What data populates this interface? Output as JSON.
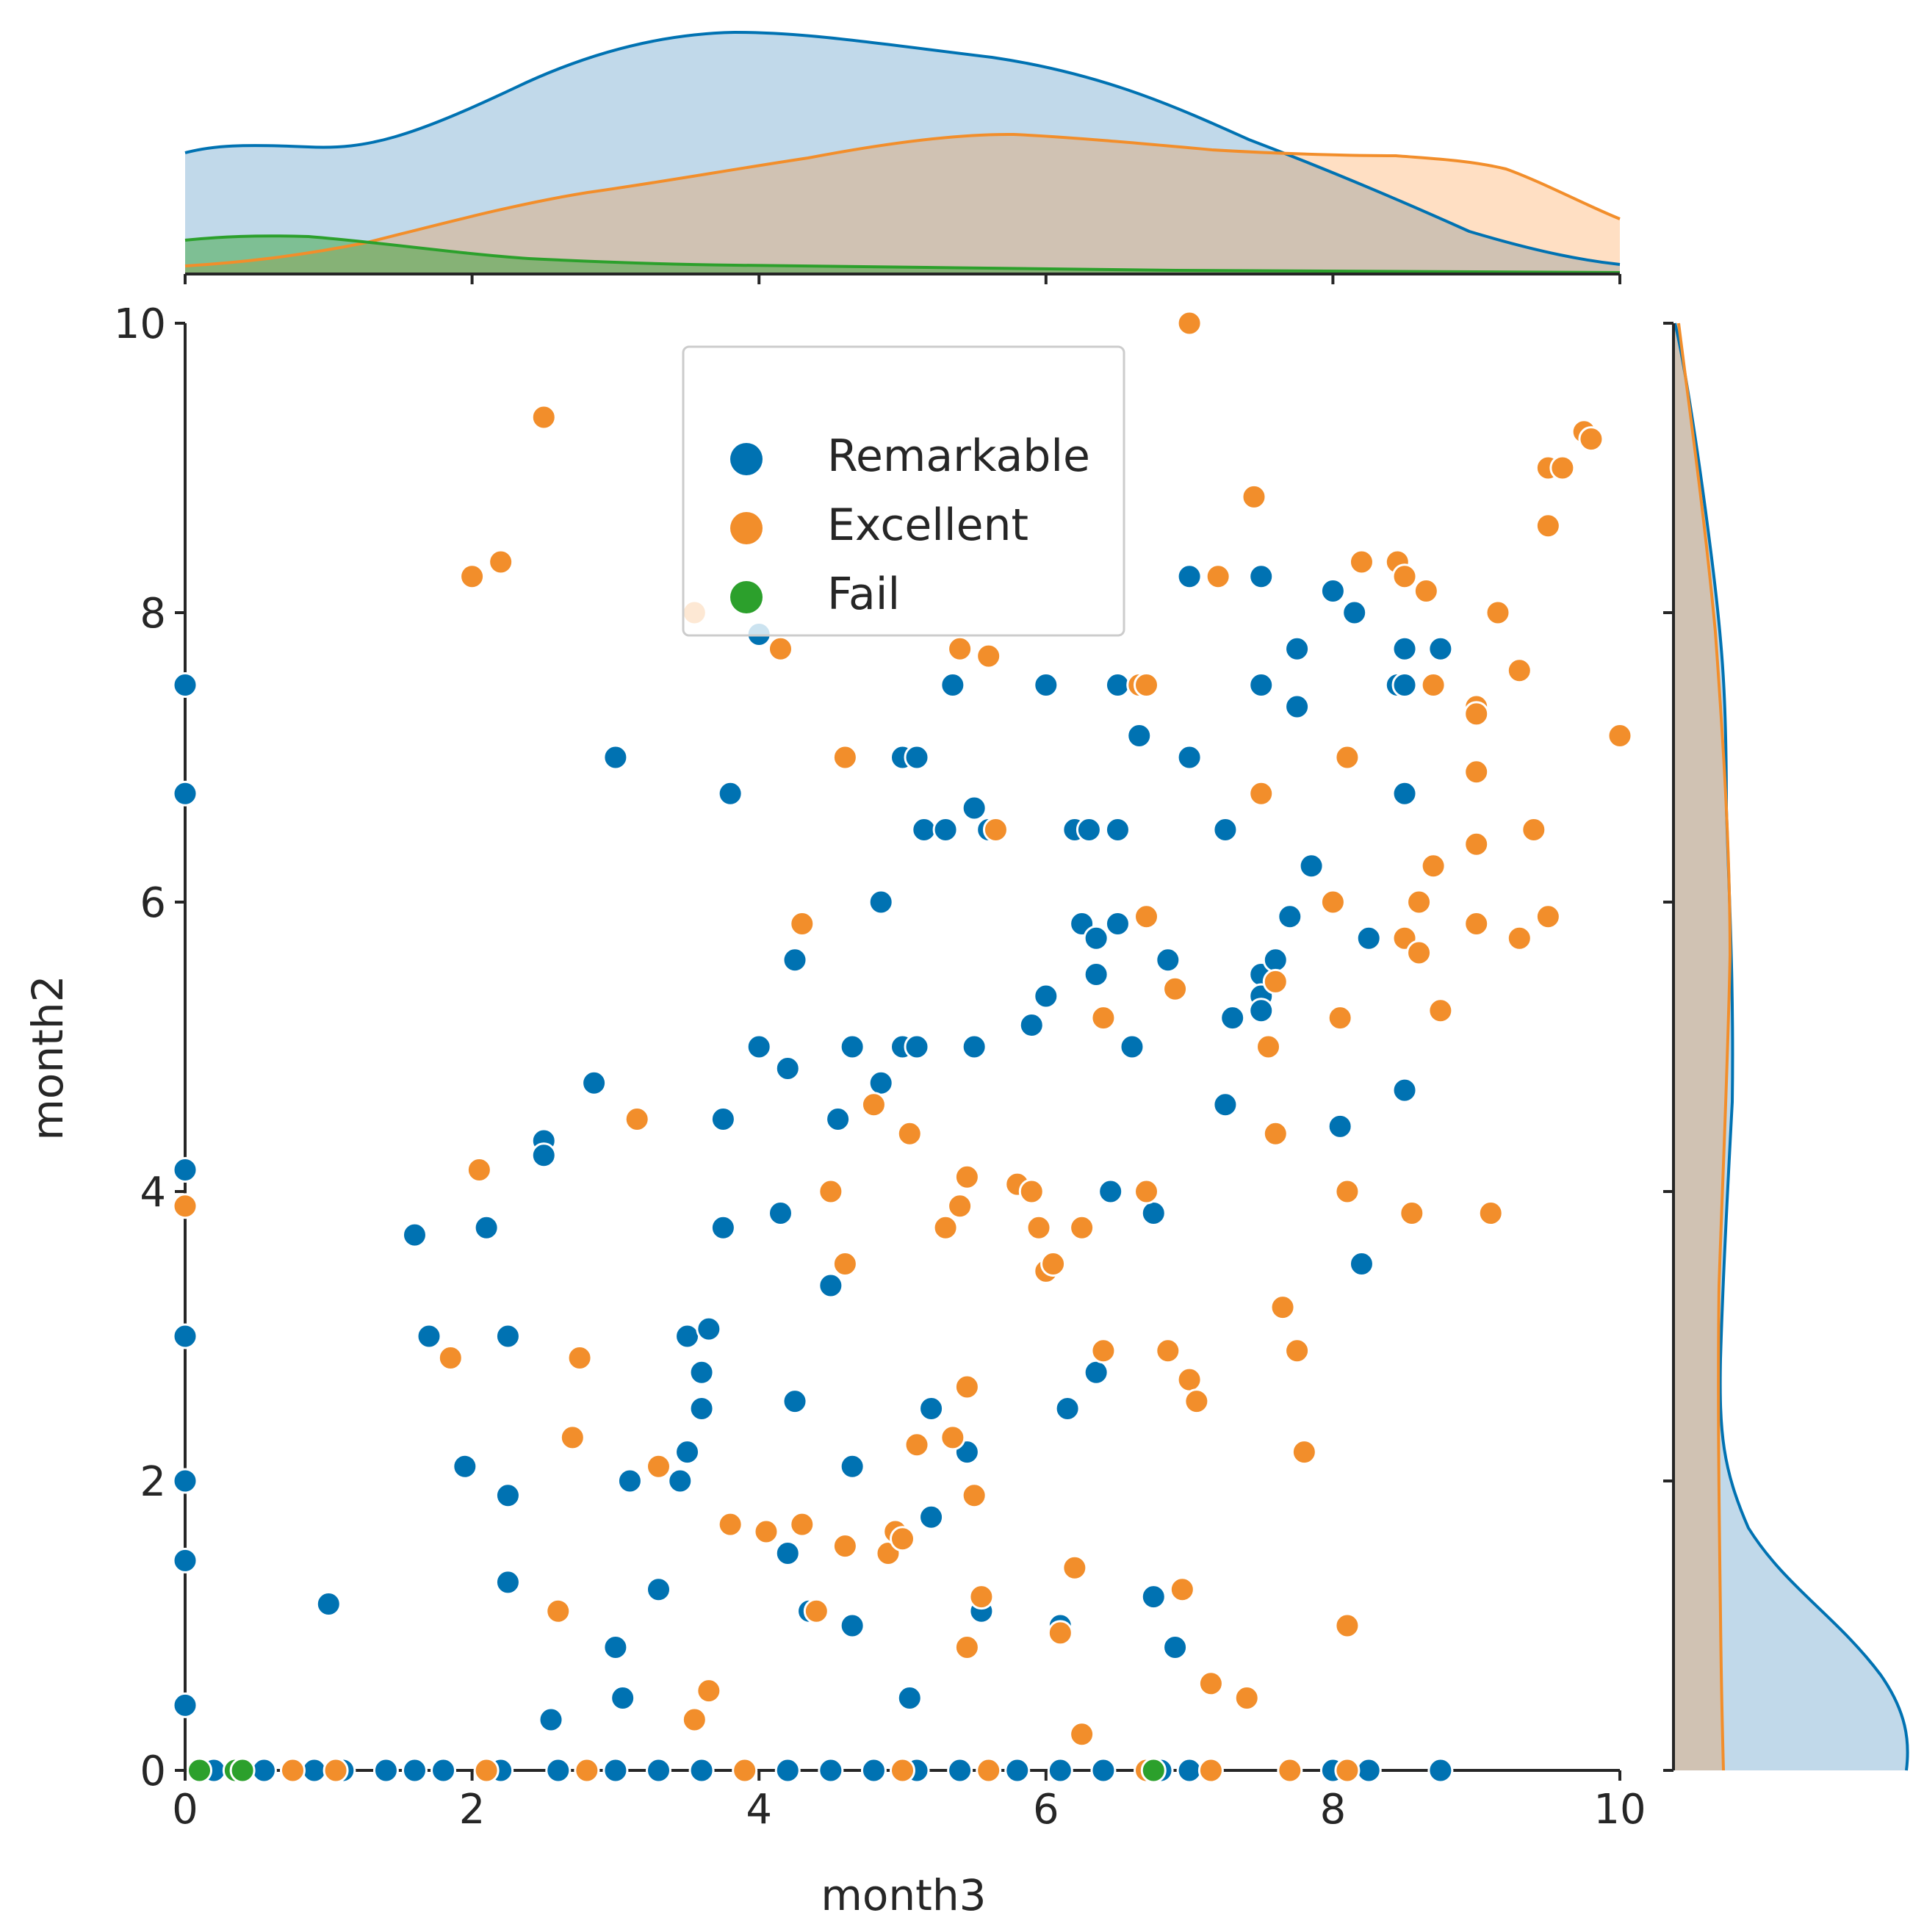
{
  "chart_data": {
    "type": "scatter",
    "title": "",
    "xlabel": "month3",
    "ylabel": "month2",
    "xlim": [
      0,
      10
    ],
    "ylim": [
      0,
      10
    ],
    "xticks": [
      "0",
      "2",
      "4",
      "6",
      "8",
      "10"
    ],
    "yticks": [
      "0",
      "2",
      "4",
      "6",
      "8",
      "10"
    ],
    "legend": {
      "placement": "upper-center",
      "entries": [
        "Remarkable",
        "Excellent",
        "Fail"
      ]
    },
    "marginals": "kde (top: month3, right: month2)",
    "series": [
      {
        "name": "Remarkable",
        "color": "#0072B2",
        "points": [
          [
            0,
            7.5
          ],
          [
            0,
            6.75
          ],
          [
            0,
            4.15
          ],
          [
            0,
            3
          ],
          [
            0,
            2
          ],
          [
            0,
            1.45
          ],
          [
            0,
            0.45
          ],
          [
            1,
            1.15
          ],
          [
            1.6,
            3.7
          ],
          [
            1.7,
            3
          ],
          [
            1.95,
            2.1
          ],
          [
            2.1,
            3.75
          ],
          [
            2.25,
            3
          ],
          [
            2.25,
            1.9
          ],
          [
            2.25,
            1.3
          ],
          [
            2.5,
            4.35
          ],
          [
            2.5,
            4.25
          ],
          [
            2.55,
            0.35
          ],
          [
            2.85,
            4.75
          ],
          [
            3,
            7
          ],
          [
            3,
            0.85
          ],
          [
            3.05,
            0.5
          ],
          [
            3.1,
            2
          ],
          [
            3.3,
            1.25
          ],
          [
            3.45,
            2
          ],
          [
            3.5,
            3
          ],
          [
            3.5,
            2.2
          ],
          [
            3.6,
            2.75
          ],
          [
            3.6,
            2.5
          ],
          [
            3.65,
            3.05
          ],
          [
            3.75,
            4.5
          ],
          [
            3.75,
            3.75
          ],
          [
            3.8,
            6.75
          ],
          [
            4,
            7.85
          ],
          [
            4,
            5
          ],
          [
            4.15,
            3.85
          ],
          [
            4.2,
            4.85
          ],
          [
            4.2,
            1.5
          ],
          [
            4.25,
            5.6
          ],
          [
            4.25,
            2.55
          ],
          [
            4.35,
            1.1
          ],
          [
            4.5,
            3.35
          ],
          [
            4.55,
            4.5
          ],
          [
            4.65,
            5
          ],
          [
            4.65,
            2.1
          ],
          [
            4.65,
            1
          ],
          [
            4.85,
            6
          ],
          [
            4.85,
            4.75
          ],
          [
            5,
            7
          ],
          [
            5,
            5
          ],
          [
            5.05,
            0.5
          ],
          [
            5.1,
            7
          ],
          [
            5.1,
            5
          ],
          [
            5.15,
            6.5
          ],
          [
            5.2,
            2.5
          ],
          [
            5.2,
            1.75
          ],
          [
            5.3,
            6.5
          ],
          [
            5.35,
            7.5
          ],
          [
            5.45,
            2.2
          ],
          [
            5.5,
            6.65
          ],
          [
            5.5,
            5
          ],
          [
            5.55,
            1.1
          ],
          [
            5.6,
            6.5
          ],
          [
            5.9,
            5.15
          ],
          [
            6,
            7.5
          ],
          [
            6,
            5.35
          ],
          [
            6.1,
            1
          ],
          [
            6.15,
            2.5
          ],
          [
            6.2,
            6.5
          ],
          [
            6.25,
            5.85
          ],
          [
            6.3,
            6.5
          ],
          [
            6.35,
            5.75
          ],
          [
            6.35,
            5.5
          ],
          [
            6.35,
            2.75
          ],
          [
            6.45,
            4
          ],
          [
            6.5,
            7.5
          ],
          [
            6.5,
            6.5
          ],
          [
            6.5,
            5.85
          ],
          [
            6.6,
            5
          ],
          [
            6.65,
            7.15
          ],
          [
            6.75,
            3.85
          ],
          [
            6.75,
            1.2
          ],
          [
            6.85,
            5.6
          ],
          [
            6.9,
            0.85
          ],
          [
            7,
            8.25
          ],
          [
            7,
            7
          ],
          [
            7.25,
            6.5
          ],
          [
            7.25,
            4.6
          ],
          [
            7.3,
            5.2
          ],
          [
            7.5,
            8.25
          ],
          [
            7.5,
            7.5
          ],
          [
            7.5,
            5.5
          ],
          [
            7.5,
            5.35
          ],
          [
            7.5,
            5.25
          ],
          [
            7.6,
            5.6
          ],
          [
            7.7,
            5.9
          ],
          [
            7.75,
            7.75
          ],
          [
            7.75,
            7.35
          ],
          [
            7.85,
            6.25
          ],
          [
            8,
            8.15
          ],
          [
            8.05,
            4.45
          ],
          [
            8.15,
            8
          ],
          [
            8.2,
            3.5
          ],
          [
            8.25,
            5.75
          ],
          [
            8.45,
            7.5
          ],
          [
            8.5,
            7.5
          ],
          [
            8.5,
            7.75
          ],
          [
            8.5,
            6.75
          ],
          [
            8.5,
            4.7
          ],
          [
            8.75,
            7.75
          ],
          [
            0.2,
            0
          ],
          [
            0.55,
            0
          ],
          [
            0.9,
            0
          ],
          [
            1.1,
            0
          ],
          [
            1.4,
            0
          ],
          [
            1.6,
            0
          ],
          [
            1.8,
            0
          ],
          [
            2.2,
            0
          ],
          [
            2.6,
            0
          ],
          [
            3,
            0
          ],
          [
            3.3,
            0
          ],
          [
            3.6,
            0
          ],
          [
            4.2,
            0
          ],
          [
            4.5,
            0
          ],
          [
            4.8,
            0
          ],
          [
            5.1,
            0
          ],
          [
            5.4,
            0
          ],
          [
            5.8,
            0
          ],
          [
            6.1,
            0
          ],
          [
            6.4,
            0
          ],
          [
            6.8,
            0
          ],
          [
            7,
            0
          ],
          [
            8,
            0
          ],
          [
            8.25,
            0
          ],
          [
            8.75,
            0
          ]
        ]
      },
      {
        "name": "Excellent",
        "color": "#F28E2B",
        "points": [
          [
            0,
            3.9
          ],
          [
            1.85,
            2.85
          ],
          [
            2,
            8.25
          ],
          [
            2.05,
            4.15
          ],
          [
            2.2,
            8.35
          ],
          [
            2.5,
            9.35
          ],
          [
            2.6,
            1.1
          ],
          [
            2.7,
            2.3
          ],
          [
            2.75,
            2.85
          ],
          [
            3.15,
            4.5
          ],
          [
            3.3,
            2.1
          ],
          [
            3.55,
            8
          ],
          [
            3.55,
            0.35
          ],
          [
            3.65,
            0.55
          ],
          [
            3.8,
            1.7
          ],
          [
            4.05,
            1.65
          ],
          [
            4.15,
            7.75
          ],
          [
            4.3,
            5.85
          ],
          [
            4.3,
            1.7
          ],
          [
            4.4,
            1.1
          ],
          [
            4.5,
            4
          ],
          [
            4.6,
            7
          ],
          [
            4.6,
            3.5
          ],
          [
            4.6,
            1.55
          ],
          [
            4.8,
            4.6
          ],
          [
            4.9,
            1.5
          ],
          [
            4.95,
            1.65
          ],
          [
            5,
            1.6
          ],
          [
            5.05,
            4.4
          ],
          [
            5.1,
            2.25
          ],
          [
            5.3,
            3.75
          ],
          [
            5.35,
            2.3
          ],
          [
            5.4,
            7.75
          ],
          [
            5.4,
            3.9
          ],
          [
            5.45,
            4.1
          ],
          [
            5.45,
            2.65
          ],
          [
            5.45,
            0.85
          ],
          [
            5.5,
            1.9
          ],
          [
            5.55,
            1.2
          ],
          [
            5.6,
            7.7
          ],
          [
            5.65,
            6.5
          ],
          [
            5.8,
            4.05
          ],
          [
            5.9,
            4
          ],
          [
            5.95,
            3.75
          ],
          [
            6,
            3.45
          ],
          [
            6.05,
            3.5
          ],
          [
            6.1,
            0.95
          ],
          [
            6.2,
            1.4
          ],
          [
            6.25,
            3.75
          ],
          [
            6.25,
            0.25
          ],
          [
            6.4,
            5.2
          ],
          [
            6.4,
            2.9
          ],
          [
            6.65,
            7.5
          ],
          [
            6.7,
            7.5
          ],
          [
            6.7,
            4
          ],
          [
            6.7,
            5.9
          ],
          [
            6.85,
            2.9
          ],
          [
            6.9,
            5.4
          ],
          [
            6.95,
            1.25
          ],
          [
            7,
            10
          ],
          [
            7,
            2.7
          ],
          [
            7.05,
            2.55
          ],
          [
            7.15,
            0.6
          ],
          [
            7.2,
            8.25
          ],
          [
            7.4,
            0.5
          ],
          [
            7.45,
            8.8
          ],
          [
            7.5,
            6.75
          ],
          [
            7.55,
            5
          ],
          [
            7.6,
            5.45
          ],
          [
            7.6,
            4.4
          ],
          [
            7.65,
            3.2
          ],
          [
            7.75,
            2.9
          ],
          [
            7.8,
            2.2
          ],
          [
            8,
            6
          ],
          [
            8.05,
            5.2
          ],
          [
            8.1,
            7
          ],
          [
            8.1,
            4
          ],
          [
            8.1,
            1
          ],
          [
            8.2,
            8.35
          ],
          [
            8.45,
            8.35
          ],
          [
            8.5,
            8.25
          ],
          [
            8.5,
            5.75
          ],
          [
            8.55,
            3.85
          ],
          [
            8.6,
            5.65
          ],
          [
            8.6,
            6
          ],
          [
            8.65,
            8.15
          ],
          [
            8.7,
            7.5
          ],
          [
            8.7,
            6.25
          ],
          [
            8.75,
            5.25
          ],
          [
            9,
            7.35
          ],
          [
            9,
            7.3
          ],
          [
            9,
            6.9
          ],
          [
            9,
            6.4
          ],
          [
            9,
            5.85
          ],
          [
            9.1,
            3.85
          ],
          [
            9.15,
            8
          ],
          [
            9.3,
            7.6
          ],
          [
            9.3,
            5.75
          ],
          [
            9.4,
            6.5
          ],
          [
            9.5,
            9
          ],
          [
            9.5,
            8.6
          ],
          [
            9.5,
            5.9
          ],
          [
            9.6,
            9
          ],
          [
            9.75,
            9.25
          ],
          [
            9.8,
            9.2
          ],
          [
            10,
            7.15
          ],
          [
            0.75,
            0
          ],
          [
            1.05,
            0
          ],
          [
            2.1,
            0
          ],
          [
            2.8,
            0
          ],
          [
            3.9,
            0
          ],
          [
            5,
            0
          ],
          [
            5.6,
            0
          ],
          [
            6.7,
            0
          ],
          [
            7.15,
            0
          ],
          [
            7.7,
            0
          ],
          [
            8.1,
            0
          ]
        ]
      },
      {
        "name": "Fail",
        "color": "#2CA02C",
        "points": [
          [
            0.1,
            0
          ],
          [
            0.35,
            0
          ],
          [
            0.4,
            0
          ],
          [
            6.75,
            0
          ]
        ]
      }
    ]
  }
}
